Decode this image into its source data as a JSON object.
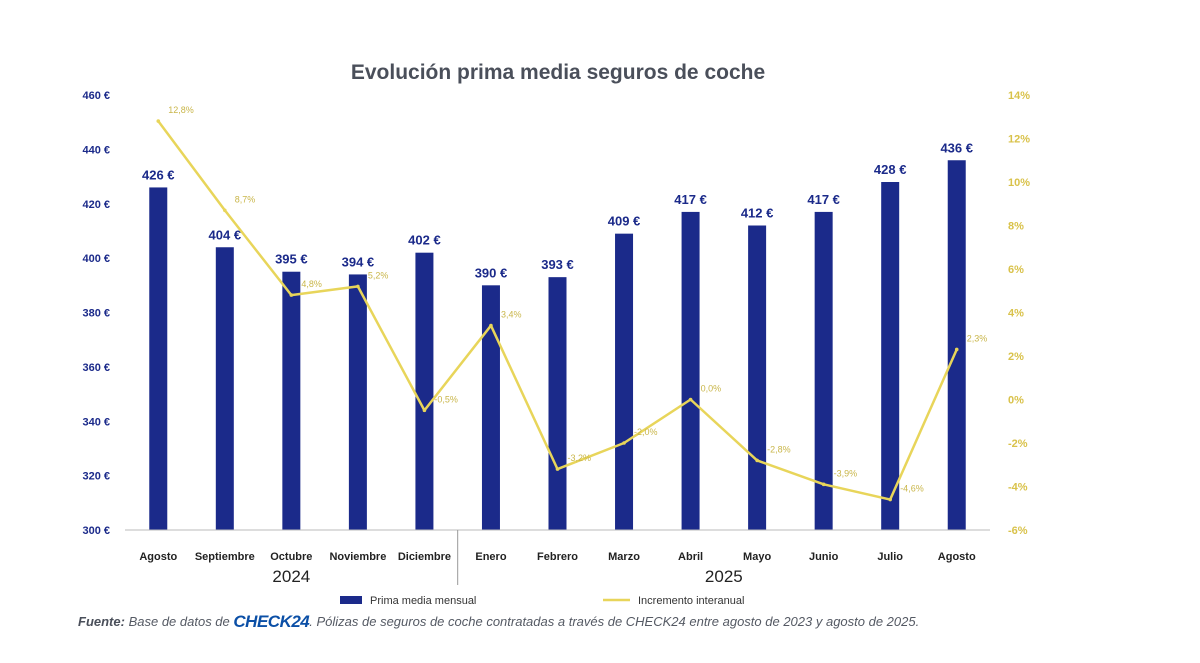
{
  "chart_data": {
    "type": "bar",
    "title": "Evolución prima media seguros de coche",
    "categories": [
      "Agosto",
      "Septiembre",
      "Octubre",
      "Noviembre",
      "Diciembre",
      "Enero",
      "Febrero",
      "Marzo",
      "Abril",
      "Mayo",
      "Junio",
      "Julio",
      "Agosto"
    ],
    "year_groups": [
      {
        "label": "2024",
        "first_index": 0,
        "last_index": 4
      },
      {
        "label": "2025",
        "first_index": 5,
        "last_index": 12
      }
    ],
    "series": [
      {
        "name": "Prima media mensual",
        "type": "bar",
        "axis": "left",
        "color": "#1b2a8a",
        "values": [
          426,
          404,
          395,
          394,
          402,
          390,
          393,
          409,
          417,
          412,
          417,
          428,
          436
        ],
        "value_labels": [
          "426 €",
          "404 €",
          "395 €",
          "394 €",
          "402 €",
          "390 €",
          "393 €",
          "409 €",
          "417 €",
          "412 €",
          "417 €",
          "428 €",
          "436 €"
        ]
      },
      {
        "name": "Incremento interanual",
        "type": "line",
        "axis": "right",
        "color": "#e8d55a",
        "values": [
          12.8,
          8.7,
          4.8,
          5.2,
          -0.5,
          3.4,
          -3.2,
          -2.0,
          0.0,
          -2.8,
          -3.9,
          -4.6,
          2.3
        ],
        "value_labels": [
          "12,8%",
          "8,7%",
          "4,8%",
          "5,2%",
          "-0,5%",
          "3,4%",
          "-3,2%",
          "-2,0%",
          "0,0%",
          "-2,8%",
          "-3,9%",
          "-4,6%",
          "2,3%"
        ]
      }
    ],
    "y_left": {
      "min": 300,
      "max": 460,
      "ticks": [
        460,
        440,
        420,
        400,
        380,
        360,
        340,
        320,
        300
      ],
      "tick_labels": [
        "460 €",
        "440 €",
        "420 €",
        "400 €",
        "380 €",
        "360 €",
        "340 €",
        "320 €",
        "300 €"
      ],
      "color": "#1b2a8a"
    },
    "y_right": {
      "min": -6,
      "max": 14,
      "ticks": [
        14,
        12,
        10,
        8,
        6,
        4,
        2,
        0,
        -2,
        -4,
        -6
      ],
      "tick_labels": [
        "14%",
        "12%",
        "10%",
        "8%",
        "6%",
        "4%",
        "2%",
        "0%",
        "-2%",
        "-4%",
        "-6%"
      ],
      "color": "#d9c24a"
    },
    "grid": false,
    "legend_position": "bottom"
  },
  "source": {
    "label": "Fuente:",
    "text_before": "Base de datos de",
    "brand": "CHECK24",
    "text_after": ". Pólizas de seguros de coche contratadas a través de CHECK24 entre agosto de 2023 y agosto de 2025."
  },
  "colors": {
    "bar": "#1b2a8a",
    "line": "#e8d55a",
    "label_text": "#1b2a8a",
    "pct_label_text": "#c9b64a",
    "separator": "#999999"
  }
}
